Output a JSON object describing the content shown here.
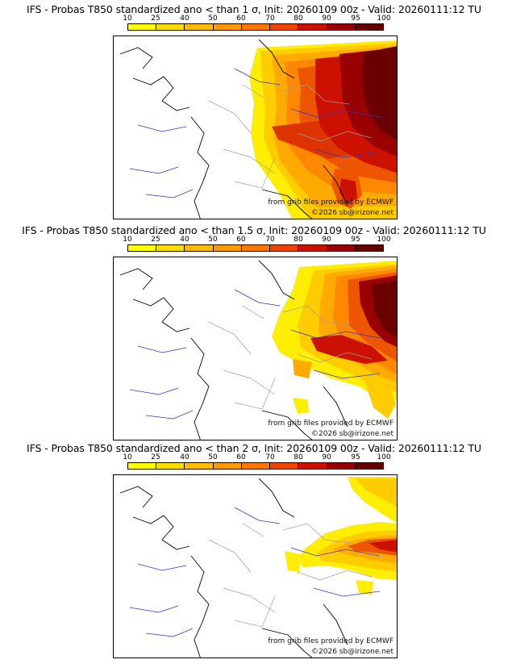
{
  "panels": [
    {
      "title": "IFS - Probas T850  standardized ano < than 1 σ, Init: 20260109 00z - Valid: 20260111:12 TU",
      "credit_source": "from grib files provided by ECMWF",
      "credit_copyright": "©2026 sb@irizone.net",
      "anomaly_threshold": "1 σ"
    },
    {
      "title": "IFS - Probas T850  standardized ano < than 1.5 σ, Init: 20260109 00z - Valid: 20260111:12 TU",
      "credit_source": "from grib files provided by ECMWF",
      "credit_copyright": "©2026 sb@irizone.net",
      "anomaly_threshold": "1.5 σ"
    },
    {
      "title": "IFS - Probas T850  standardized ano < than 2 σ, Init: 20260109 00z - Valid: 20260111:12 TU",
      "credit_source": "from grib files provided by ECMWF",
      "credit_copyright": "©2026 sb@irizone.net",
      "anomaly_threshold": "2 σ"
    }
  ],
  "colorbar": {
    "ticks": [
      "10",
      "25",
      "40",
      "50",
      "60",
      "70",
      "80",
      "90",
      "95",
      "100"
    ],
    "colors": [
      "#ffff00",
      "#ffdd00",
      "#ffbb00",
      "#ff9900",
      "#ff7700",
      "#ee4400",
      "#cc1100",
      "#990000",
      "#660000"
    ]
  },
  "colors": {
    "land_border": "#a0a0a0",
    "coastline": "#000000",
    "rivers": "#3333cc"
  }
}
